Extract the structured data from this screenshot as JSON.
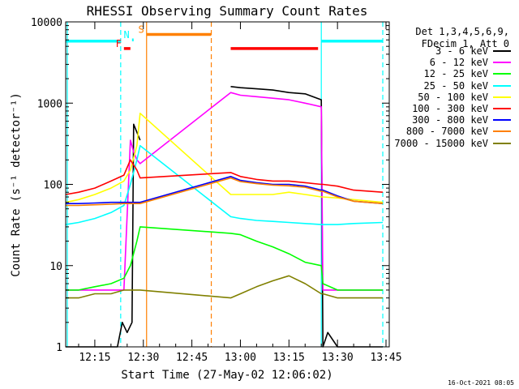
{
  "chart_data": {
    "type": "line",
    "title": "RHESSI Observing Summary Count Rates",
    "xlabel": "Start Time (27-May-02 12:06:02)",
    "ylabel": "Count Rate (s⁻¹ detector⁻¹)",
    "y_scale": "log",
    "ylim": [
      1,
      10000
    ],
    "xlim_minutes_clock": [
      "12:06",
      "13:46"
    ],
    "y_ticks": [
      "1",
      "10",
      "100",
      "1000",
      "10000"
    ],
    "x_ticks": [
      "12:15",
      "12:30",
      "12:45",
      "13:00",
      "13:15",
      "13:30",
      "13:45"
    ],
    "legend_header": [
      "Det 1,3,4,5,6,9,",
      "FDecim 1, Att 0"
    ],
    "series": [
      {
        "name": "3 - 6 keV",
        "color": "#000000",
        "x": [
          "12:06",
          "12:20",
          "12:22",
          "12:23.5",
          "12:25",
          "12:26.5",
          "12:27",
          "12:29",
          "12:35",
          "12:50",
          "12:57",
          "13:00",
          "13:05",
          "13:10",
          "13:15",
          "13:20",
          "13:25",
          "13:25.5",
          "13:27",
          "13:30",
          "13:40",
          "13:44"
        ],
        "y": [
          1,
          1,
          1,
          2,
          1.5,
          2,
          550,
          350,
          null,
          null,
          1600,
          1550,
          1500,
          1450,
          1350,
          1300,
          1100,
          1,
          1.5,
          1,
          1,
          1
        ]
      },
      {
        "name": "6 - 12 keV",
        "color": "#ff00ff",
        "x": [
          "12:06",
          "12:22",
          "12:23",
          "12:24",
          "12:26",
          "12:27",
          "12:28",
          "12:29",
          "12:57",
          "13:00",
          "13:05",
          "13:10",
          "13:15",
          "13:20",
          "13:25",
          "13:25.5",
          "13:27",
          "13:30",
          "13:44"
        ],
        "y": [
          5,
          5,
          5,
          5,
          350,
          250,
          200,
          180,
          1350,
          1250,
          1200,
          1150,
          1100,
          1000,
          900,
          5,
          5,
          5,
          5
        ]
      },
      {
        "name": "12 - 25 keV",
        "color": "#00ff00",
        "x": [
          "12:06",
          "12:10",
          "12:15",
          "12:20",
          "12:24",
          "12:26",
          "12:28",
          "12:29",
          "12:57",
          "13:00",
          "13:05",
          "13:10",
          "13:15",
          "13:20",
          "13:25",
          "13:25.5",
          "13:30",
          "13:35",
          "13:44"
        ],
        "y": [
          5,
          5,
          5.5,
          6,
          7,
          10,
          20,
          30,
          25,
          24,
          20,
          17,
          14,
          11,
          10,
          6,
          5,
          5,
          5
        ]
      },
      {
        "name": "25 - 50 keV",
        "color": "#00ffff",
        "x": [
          "12:06",
          "12:10",
          "12:15",
          "12:20",
          "12:24",
          "12:26",
          "12:28",
          "12:29",
          "12:57",
          "13:00",
          "13:05",
          "13:10",
          "13:15",
          "13:20",
          "13:25",
          "13:25.5",
          "13:30",
          "13:35",
          "13:44"
        ],
        "y": [
          32,
          34,
          38,
          45,
          55,
          100,
          200,
          300,
          40,
          38,
          36,
          35,
          34,
          33,
          32,
          32,
          32,
          33,
          34
        ]
      },
      {
        "name": "50 - 100 keV",
        "color": "#ffff00",
        "x": [
          "12:06",
          "12:10",
          "12:15",
          "12:20",
          "12:24",
          "12:26",
          "12:28",
          "12:29",
          "12:57",
          "13:00",
          "13:05",
          "13:10",
          "13:15",
          "13:20",
          "13:25",
          "13:25.5",
          "13:30",
          "13:35",
          "13:44"
        ],
        "y": [
          60,
          65,
          75,
          90,
          110,
          150,
          300,
          750,
          75,
          75,
          75,
          75,
          80,
          75,
          70,
          70,
          68,
          65,
          60
        ]
      },
      {
        "name": "100 - 300 keV",
        "color": "#ff0000",
        "x": [
          "12:06",
          "12:10",
          "12:15",
          "12:20",
          "12:24",
          "12:26",
          "12:28",
          "12:29",
          "12:57",
          "13:00",
          "13:05",
          "13:10",
          "13:15",
          "13:20",
          "13:25",
          "13:25.5",
          "13:30",
          "13:35",
          "13:44"
        ],
        "y": [
          75,
          80,
          90,
          110,
          130,
          200,
          150,
          120,
          140,
          125,
          115,
          110,
          110,
          105,
          100,
          100,
          95,
          85,
          80
        ]
      },
      {
        "name": "300 - 800 keV",
        "color": "#0000ff",
        "x": [
          "12:06",
          "12:10",
          "12:15",
          "12:20",
          "12:24",
          "12:26",
          "12:28",
          "12:29",
          "12:57",
          "13:00",
          "13:05",
          "13:10",
          "13:15",
          "13:20",
          "13:25",
          "13:25.5",
          "13:30",
          "13:35",
          "13:44"
        ],
        "y": [
          58,
          58,
          59,
          60,
          60,
          60,
          60,
          60,
          125,
          112,
          105,
          100,
          100,
          95,
          85,
          85,
          72,
          62,
          58
        ]
      },
      {
        "name": "800 - 7000 keV",
        "color": "#ff8000",
        "x": [
          "12:06",
          "12:10",
          "12:15",
          "12:20",
          "12:24",
          "12:26",
          "12:28",
          "12:29",
          "12:57",
          "13:00",
          "13:05",
          "13:10",
          "13:15",
          "13:20",
          "13:25",
          "13:25.5",
          "13:30",
          "13:35",
          "13:44"
        ],
        "y": [
          55,
          55,
          56,
          57,
          58,
          58,
          58,
          58,
          120,
          108,
          102,
          98,
          96,
          92,
          82,
          82,
          70,
          62,
          58
        ]
      },
      {
        "name": "7000 - 15000 keV",
        "color": "#808000",
        "x": [
          "12:06",
          "12:10",
          "12:15",
          "12:20",
          "12:24",
          "12:26",
          "12:28",
          "12:29",
          "12:57",
          "13:00",
          "13:05",
          "13:10",
          "13:15",
          "13:20",
          "13:25",
          "13:25.5",
          "13:30",
          "13:35",
          "13:44"
        ],
        "y": [
          4,
          4,
          4.5,
          4.5,
          5,
          5,
          5,
          5,
          4,
          4.5,
          5.5,
          6.5,
          7.5,
          6,
          4.5,
          4.5,
          4,
          4,
          4
        ]
      }
    ],
    "state_bars": [
      {
        "label": "",
        "color": "#00ffff",
        "x": [
          "12:06",
          "12:23"
        ],
        "y": 5800
      },
      {
        "label": "",
        "color": "#00ffff",
        "x": [
          "13:25",
          "13:44"
        ],
        "y": 5800
      },
      {
        "label": "F",
        "color": "#ff0000",
        "x": [
          "12:24",
          "12:26"
        ],
        "y": 4700
      },
      {
        "label": "N",
        "color": "#00ffff",
        "x": [
          "12:26.5",
          "12:27"
        ],
        "y": 6000
      },
      {
        "label": "S",
        "color": "#ff8000",
        "x": [
          "12:31",
          "12:51"
        ],
        "y": 7000
      },
      {
        "label": "",
        "color": "#ff0000",
        "x": [
          "12:57",
          "13:24"
        ],
        "y": 4700
      }
    ],
    "vertical_markers": [
      {
        "x": "12:06.5",
        "color": "#00ffff",
        "style": "solid"
      },
      {
        "x": "12:23",
        "color": "#00ffff",
        "style": "dashed"
      },
      {
        "x": "12:31",
        "color": "#ff8000",
        "style": "solid"
      },
      {
        "x": "12:51",
        "color": "#ff8000",
        "style": "dashed"
      },
      {
        "x": "13:25",
        "color": "#00ffff",
        "style": "solid"
      },
      {
        "x": "13:44",
        "color": "#00ffff",
        "style": "dashed"
      }
    ],
    "grid": false
  },
  "footer": "16-Oct-2021 08:05"
}
